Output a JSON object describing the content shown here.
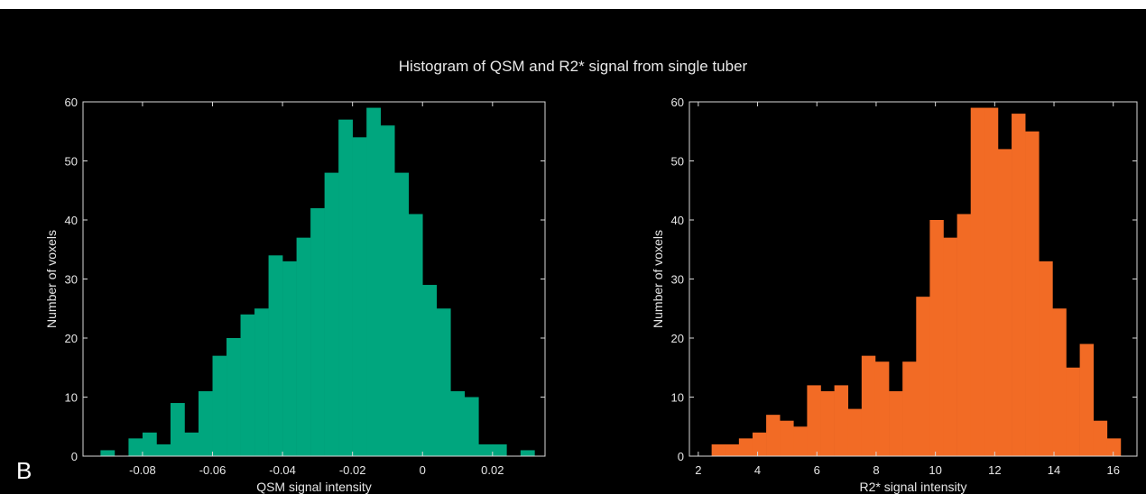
{
  "figure": {
    "title": "Histogram of QSM and R2* signal from single tuber",
    "panel_letter": "B",
    "background": "#000000"
  },
  "chart_data": [
    {
      "type": "bar",
      "name": "qsm-histogram",
      "xlabel": "QSM signal intensity",
      "ylabel": "Number of voxels",
      "color": "#00a67e",
      "xlim": [
        -0.097,
        0.035
      ],
      "ylim": [
        0,
        60
      ],
      "xticks": [
        -0.08,
        -0.06,
        -0.04,
        -0.02,
        0,
        0.02
      ],
      "xtick_labels": [
        "-0.08",
        "-0.06",
        "-0.04",
        "-0.02",
        "0",
        "0.02"
      ],
      "yticks": [
        0,
        10,
        20,
        30,
        40,
        50,
        60
      ],
      "grid": false,
      "bins": [
        {
          "x0": -0.092,
          "x1": -0.088,
          "value": 1
        },
        {
          "x0": -0.088,
          "x1": -0.084,
          "value": 0
        },
        {
          "x0": -0.084,
          "x1": -0.08,
          "value": 3
        },
        {
          "x0": -0.08,
          "x1": -0.076,
          "value": 4
        },
        {
          "x0": -0.076,
          "x1": -0.072,
          "value": 2
        },
        {
          "x0": -0.072,
          "x1": -0.068,
          "value": 9
        },
        {
          "x0": -0.068,
          "x1": -0.064,
          "value": 4
        },
        {
          "x0": -0.064,
          "x1": -0.06,
          "value": 11
        },
        {
          "x0": -0.06,
          "x1": -0.056,
          "value": 17
        },
        {
          "x0": -0.056,
          "x1": -0.052,
          "value": 20
        },
        {
          "x0": -0.052,
          "x1": -0.048,
          "value": 24
        },
        {
          "x0": -0.048,
          "x1": -0.044,
          "value": 25
        },
        {
          "x0": -0.044,
          "x1": -0.04,
          "value": 34
        },
        {
          "x0": -0.04,
          "x1": -0.036,
          "value": 33
        },
        {
          "x0": -0.036,
          "x1": -0.032,
          "value": 37
        },
        {
          "x0": -0.032,
          "x1": -0.028,
          "value": 42
        },
        {
          "x0": -0.028,
          "x1": -0.024,
          "value": 48
        },
        {
          "x0": -0.024,
          "x1": -0.02,
          "value": 57
        },
        {
          "x0": -0.02,
          "x1": -0.016,
          "value": 54
        },
        {
          "x0": -0.016,
          "x1": -0.012,
          "value": 59
        },
        {
          "x0": -0.012,
          "x1": -0.008,
          "value": 56
        },
        {
          "x0": -0.008,
          "x1": -0.004,
          "value": 48
        },
        {
          "x0": -0.004,
          "x1": 0.0,
          "value": 41
        },
        {
          "x0": 0.0,
          "x1": 0.004,
          "value": 29
        },
        {
          "x0": 0.004,
          "x1": 0.008,
          "value": 25
        },
        {
          "x0": 0.008,
          "x1": 0.012,
          "value": 11
        },
        {
          "x0": 0.012,
          "x1": 0.016,
          "value": 10
        },
        {
          "x0": 0.016,
          "x1": 0.02,
          "value": 2
        },
        {
          "x0": 0.02,
          "x1": 0.024,
          "value": 2
        },
        {
          "x0": 0.024,
          "x1": 0.028,
          "value": 0
        },
        {
          "x0": 0.028,
          "x1": 0.032,
          "value": 1
        }
      ]
    },
    {
      "type": "bar",
      "name": "r2star-histogram",
      "xlabel": "R2* signal intensity",
      "ylabel": "Number of voxels",
      "color": "#f26b25",
      "xlim": [
        1.7,
        16.8
      ],
      "ylim": [
        0,
        60
      ],
      "xticks": [
        2,
        4,
        6,
        8,
        10,
        12,
        14,
        16
      ],
      "xtick_labels": [
        "2",
        "4",
        "6",
        "8",
        "10",
        "12",
        "14",
        "16"
      ],
      "yticks": [
        0,
        10,
        20,
        30,
        40,
        50,
        60
      ],
      "grid": false,
      "bins": [
        {
          "x0": 2.45,
          "x1": 2.91,
          "value": 2
        },
        {
          "x0": 2.91,
          "x1": 3.37,
          "value": 2
        },
        {
          "x0": 3.37,
          "x1": 3.83,
          "value": 3
        },
        {
          "x0": 3.83,
          "x1": 4.29,
          "value": 4
        },
        {
          "x0": 4.29,
          "x1": 4.75,
          "value": 7
        },
        {
          "x0": 4.75,
          "x1": 5.21,
          "value": 6
        },
        {
          "x0": 5.21,
          "x1": 5.67,
          "value": 5
        },
        {
          "x0": 5.67,
          "x1": 6.13,
          "value": 12
        },
        {
          "x0": 6.13,
          "x1": 6.59,
          "value": 11
        },
        {
          "x0": 6.59,
          "x1": 7.05,
          "value": 12
        },
        {
          "x0": 7.05,
          "x1": 7.51,
          "value": 8
        },
        {
          "x0": 7.51,
          "x1": 7.97,
          "value": 17
        },
        {
          "x0": 7.97,
          "x1": 8.43,
          "value": 16
        },
        {
          "x0": 8.43,
          "x1": 8.89,
          "value": 11
        },
        {
          "x0": 8.89,
          "x1": 9.35,
          "value": 16
        },
        {
          "x0": 9.35,
          "x1": 9.81,
          "value": 27
        },
        {
          "x0": 9.81,
          "x1": 10.27,
          "value": 40
        },
        {
          "x0": 10.27,
          "x1": 10.73,
          "value": 37
        },
        {
          "x0": 10.73,
          "x1": 11.19,
          "value": 41
        },
        {
          "x0": 11.19,
          "x1": 11.65,
          "value": 59
        },
        {
          "x0": 11.65,
          "x1": 12.11,
          "value": 59
        },
        {
          "x0": 12.11,
          "x1": 12.57,
          "value": 52
        },
        {
          "x0": 12.57,
          "x1": 13.03,
          "value": 58
        },
        {
          "x0": 13.03,
          "x1": 13.49,
          "value": 55
        },
        {
          "x0": 13.49,
          "x1": 13.95,
          "value": 33
        },
        {
          "x0": 13.95,
          "x1": 14.41,
          "value": 25
        },
        {
          "x0": 14.41,
          "x1": 14.87,
          "value": 15
        },
        {
          "x0": 14.87,
          "x1": 15.33,
          "value": 19
        },
        {
          "x0": 15.33,
          "x1": 15.79,
          "value": 6
        },
        {
          "x0": 15.79,
          "x1": 16.25,
          "value": 3
        }
      ]
    }
  ]
}
